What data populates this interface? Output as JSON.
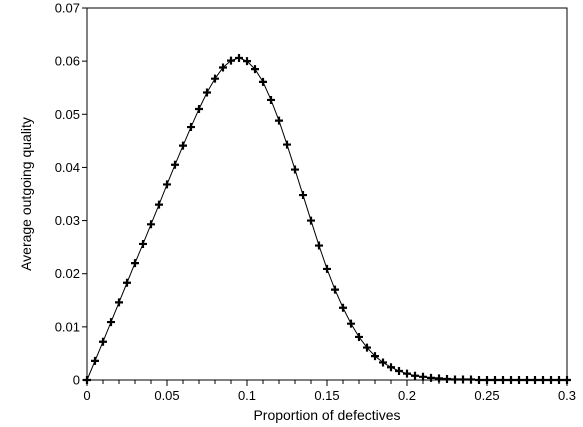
{
  "chart_data": {
    "type": "line",
    "title": "",
    "xlabel": "Proportion of defectives",
    "ylabel": "Average outgoing quality",
    "xlim": [
      0,
      0.3
    ],
    "ylim": [
      0,
      0.07
    ],
    "x_ticks": [
      0,
      0.05,
      0.1,
      0.15,
      0.2,
      0.25,
      0.3
    ],
    "x_tick_labels": [
      "0",
      "0.05",
      "0.1",
      "0.15",
      "0.2",
      "0.25",
      "0.3"
    ],
    "y_ticks": [
      0,
      0.01,
      0.02,
      0.03,
      0.04,
      0.05,
      0.06,
      0.07
    ],
    "y_tick_labels": [
      "0",
      "0.01",
      "0.02",
      "0.03",
      "0.04",
      "0.05",
      "0.06",
      "0.07"
    ],
    "grid": false,
    "legend": "none",
    "marker": "plus",
    "colors": {
      "line": "#000000",
      "marker": "#000000",
      "axes": "#000000"
    },
    "series": [
      {
        "x": [
          0,
          0.005,
          0.01,
          0.015,
          0.02,
          0.025,
          0.03,
          0.035,
          0.04,
          0.045,
          0.05,
          0.055,
          0.06,
          0.065,
          0.07,
          0.075,
          0.08,
          0.085,
          0.09,
          0.095,
          0.1,
          0.105,
          0.11,
          0.115,
          0.12,
          0.125,
          0.13,
          0.135,
          0.14,
          0.145,
          0.15,
          0.155,
          0.16,
          0.165,
          0.17,
          0.175,
          0.18,
          0.185,
          0.19,
          0.195,
          0.2,
          0.205,
          0.21,
          0.215,
          0.22,
          0.225,
          0.23,
          0.235,
          0.24,
          0.245,
          0.25,
          0.255,
          0.26,
          0.265,
          0.27,
          0.275,
          0.28,
          0.285,
          0.29,
          0.295,
          0.3
        ],
        "y": [
          0,
          0.0036,
          0.0072,
          0.0109,
          0.0146,
          0.0183,
          0.022,
          0.0256,
          0.0293,
          0.033,
          0.0368,
          0.0405,
          0.0441,
          0.0476,
          0.051,
          0.0541,
          0.0567,
          0.0588,
          0.0601,
          0.0606,
          0.06,
          0.0585,
          0.0561,
          0.0527,
          0.0488,
          0.0443,
          0.0396,
          0.0348,
          0.03,
          0.0253,
          0.0209,
          0.017,
          0.0136,
          0.0106,
          0.0081,
          0.0061,
          0.0045,
          0.0033,
          0.0024,
          0.0017,
          0.0012,
          0.0008,
          0.0006,
          0.0004,
          0.0003,
          0.0002,
          0.0001,
          0.0001,
          0.0001,
          0.0,
          0.0,
          0.0,
          0.0,
          0.0,
          0.0,
          0.0,
          0.0,
          0.0,
          0.0,
          0.0,
          0.0
        ]
      }
    ]
  }
}
